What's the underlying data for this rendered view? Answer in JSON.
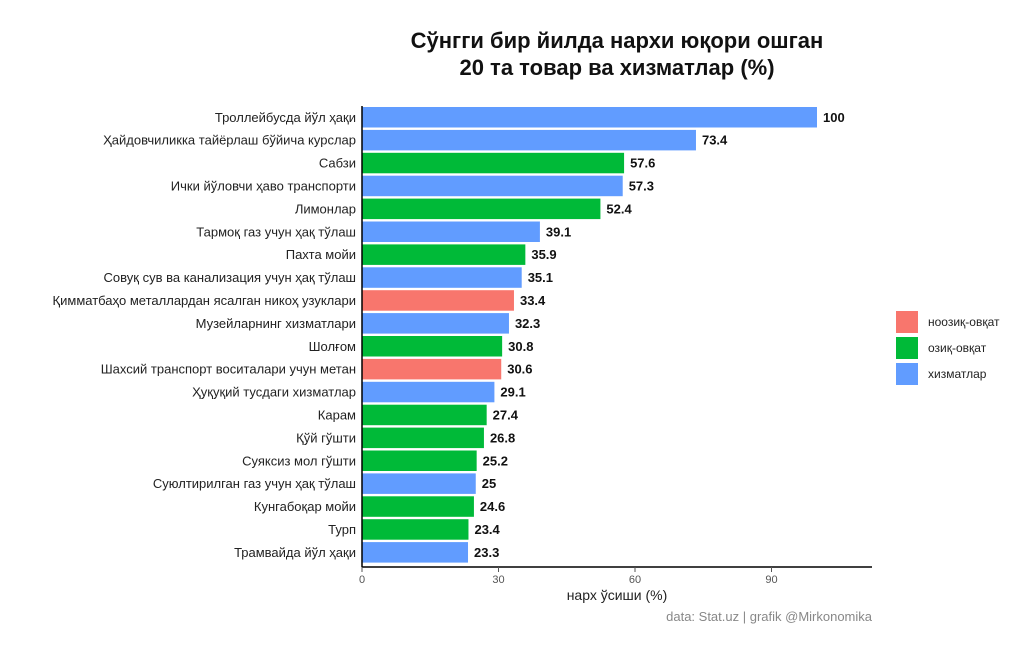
{
  "chart_data": {
    "type": "bar",
    "orientation": "horizontal",
    "title": [
      "Сўнгги бир йилда нархи юқори ошган",
      "20 та товар ва хизматлар (%)"
    ],
    "xlabel": "нарх ўсиши (%)",
    "ylabel": "",
    "xlim": [
      0,
      112
    ],
    "xticks": [
      0,
      30,
      60,
      90
    ],
    "grid": false,
    "legend_position": "right",
    "caption": "data:  Stat.uz | grafik @Mirkonomika",
    "groups": [
      {
        "name": "ноозиқ-овқат",
        "color": "#F8766D"
      },
      {
        "name": "озиқ-овқат",
        "color": "#00BA38"
      },
      {
        "name": "хизматлар",
        "color": "#619CFF"
      }
    ],
    "categories": [
      "Троллейбусда йўл ҳақи",
      "Ҳайдовчиликка тайёрлаш бўйича курслар",
      "Сабзи",
      "Ички йўловчи ҳаво транспорти",
      "Лимонлар",
      "Тармоқ газ учун ҳақ тўлаш",
      "Пахта мойи",
      "Совуқ сув ва канализация учун ҳақ тўлаш",
      "Қимматбаҳо металлардан ясалган никоҳ узуклари",
      "Музейларнинг хизматлари",
      "Шолғом",
      "Шахсий транспорт воситалари учун метан",
      "Ҳуқуқий тусдаги хизматлар",
      "Карам",
      "Қўй гўшти",
      "Суяксиз мол гўшти",
      "Суюлтирилган газ учун ҳақ тўлаш",
      "Кунгабоқар мойи",
      "Турп",
      "Трамвайда йўл ҳақи"
    ],
    "values": [
      100,
      73.4,
      57.6,
      57.3,
      52.4,
      39.1,
      35.9,
      35.1,
      33.4,
      32.3,
      30.8,
      30.6,
      29.1,
      27.4,
      26.8,
      25.2,
      25,
      24.6,
      23.4,
      23.3
    ],
    "value_labels": [
      "100",
      "73.4",
      "57.6",
      "57.3",
      "52.4",
      "39.1",
      "35.9",
      "35.1",
      "33.4",
      "32.3",
      "30.8",
      "30.6",
      "29.1",
      "27.4",
      "26.8",
      "25.2",
      "25",
      "24.6",
      "23.4",
      "23.3"
    ],
    "group_of_bar": [
      "хизматлар",
      "хизматлар",
      "озиқ-овқат",
      "хизматлар",
      "озиқ-овқат",
      "хизматлар",
      "озиқ-овқат",
      "хизматлар",
      "ноозиқ-овқат",
      "хизматлар",
      "озиқ-овқат",
      "ноозиқ-овқат",
      "хизматлар",
      "озиқ-овқат",
      "озиқ-овқат",
      "озиқ-овқат",
      "хизматлар",
      "озиқ-овқат",
      "озиқ-овқат",
      "хизматлар"
    ]
  }
}
